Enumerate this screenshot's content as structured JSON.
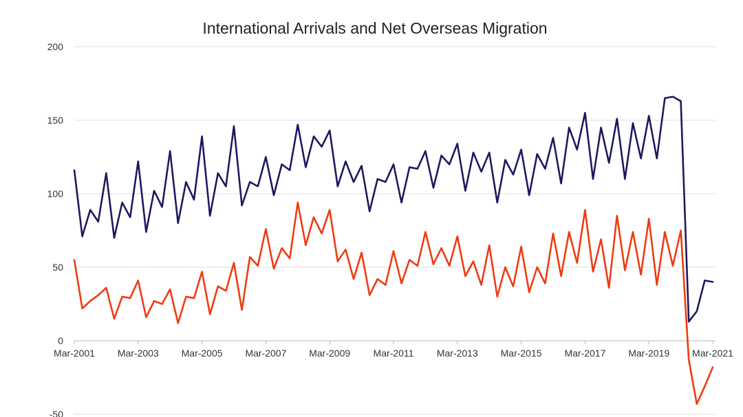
{
  "chart_data": {
    "type": "line",
    "title": "International Arrivals and Net Overseas Migration",
    "xlabel": "",
    "ylabel": "",
    "ylim": [
      -50,
      200
    ],
    "y_ticks": [
      "-50",
      "0",
      "50",
      "100",
      "150",
      "200"
    ],
    "x_tick_labels": [
      "Mar-2001",
      "Mar-2003",
      "Mar-2005",
      "Mar-2007",
      "Mar-2009",
      "Mar-2011",
      "Mar-2013",
      "Mar-2015",
      "Mar-2017",
      "Mar-2019",
      "Mar-2021"
    ],
    "grid": true,
    "legend": "none",
    "colors": [
      "#1c1a5e",
      "#ee3b12"
    ],
    "series": [
      {
        "values": [
          116,
          71,
          89,
          81,
          114,
          70,
          94,
          84,
          122,
          74,
          102,
          91,
          129,
          80,
          108,
          96,
          139,
          85,
          114,
          105,
          146,
          92,
          108,
          105,
          125,
          99,
          120,
          116,
          147,
          118,
          139,
          132,
          143,
          105,
          122,
          108,
          119,
          88,
          110,
          108,
          120,
          94,
          118,
          117,
          129,
          104,
          126,
          120,
          134,
          102,
          128,
          115,
          128,
          94,
          123,
          113,
          130,
          99,
          127,
          117,
          138,
          107,
          145,
          130,
          155,
          110,
          145,
          121,
          151,
          110,
          148,
          124,
          153,
          124,
          165,
          166,
          163,
          13,
          20,
          41,
          40
        ]
      },
      {
        "values": [
          55,
          22,
          27,
          31,
          36,
          15,
          30,
          29,
          41,
          16,
          27,
          25,
          35,
          12,
          30,
          29,
          47,
          18,
          37,
          34,
          53,
          21,
          57,
          51,
          76,
          49,
          63,
          56,
          94,
          65,
          84,
          73,
          89,
          54,
          62,
          42,
          60,
          31,
          42,
          38,
          61,
          39,
          55,
          51,
          74,
          52,
          63,
          51,
          71,
          44,
          54,
          38,
          65,
          30,
          50,
          37,
          64,
          33,
          50,
          39,
          73,
          44,
          74,
          53,
          89,
          47,
          69,
          36,
          85,
          48,
          74,
          45,
          83,
          38,
          74,
          51,
          75,
          -13,
          -43,
          -31,
          -18
        ]
      }
    ]
  }
}
